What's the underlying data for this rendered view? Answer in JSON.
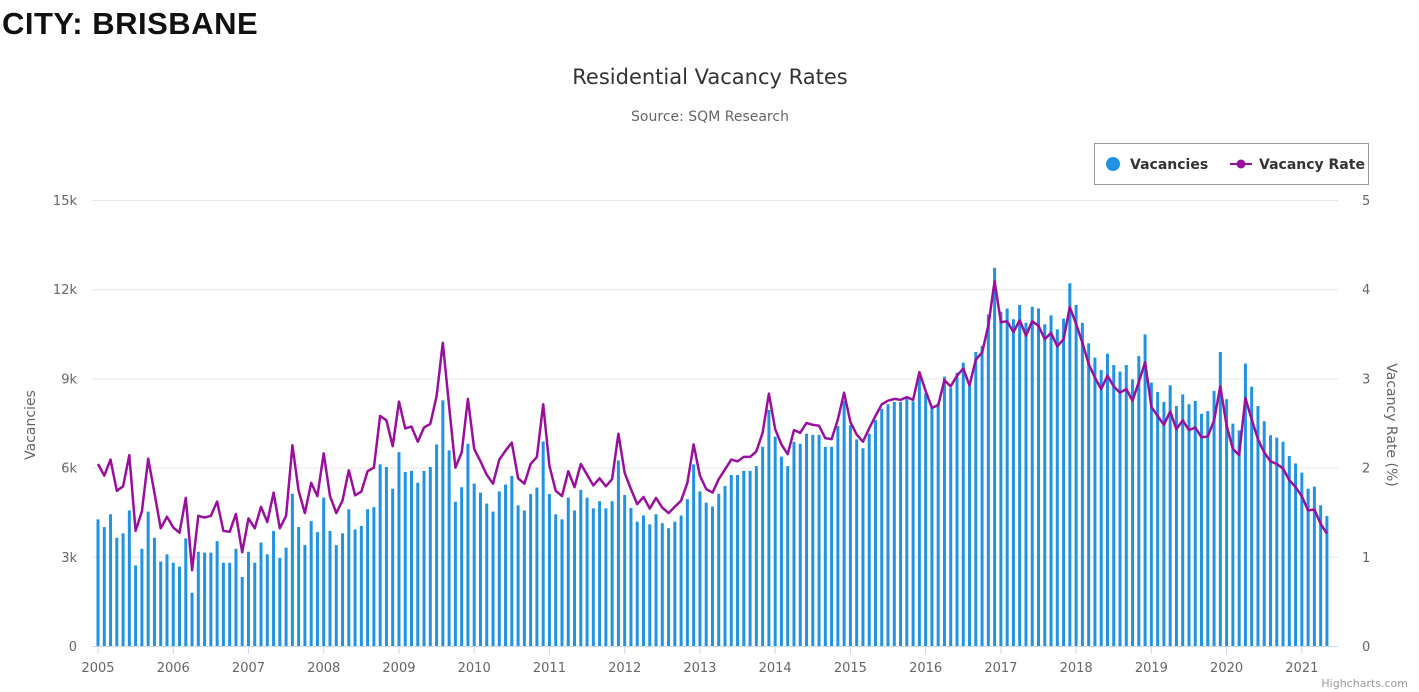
{
  "page": {
    "heading": "CITY: BRISBANE"
  },
  "chart_data": {
    "type": "bar+line",
    "title": "Residential Vacancy Rates",
    "subtitle": "Source: SQM Research",
    "credit": "Highcharts.com",
    "legend": {
      "placement": "top-right",
      "items": [
        "Vacancies",
        "Vacancy Rate"
      ]
    },
    "colors": {
      "Vacancies": "#2293e3",
      "Vacancy Rate": "#990f9e",
      "grid": "#e6e6e6"
    },
    "x_start_year": 2005,
    "x_tick_labels": [
      "2005",
      "2006",
      "2007",
      "2008",
      "2009",
      "2010",
      "2011",
      "2012",
      "2013",
      "2014",
      "2015",
      "2016",
      "2017",
      "2018",
      "2019",
      "2020",
      "2021"
    ],
    "y_left": {
      "title": "Vacancies",
      "min": 0,
      "max": 15000,
      "tick_labels": [
        "0",
        "3k",
        "6k",
        "9k",
        "12k",
        "15k"
      ]
    },
    "y_right": {
      "title": "Vacancy Rate (%)",
      "min": 0,
      "max": 5,
      "tick_labels": [
        "0",
        "1",
        "2",
        "3",
        "4",
        "5"
      ]
    },
    "grid": true,
    "frequency": "monthly",
    "x_range": [
      "2005-01",
      "2021-05"
    ],
    "series": [
      {
        "name": "Vacancies",
        "type": "bar",
        "axis": "left",
        "values": [
          4260,
          4000,
          4430,
          3640,
          3790,
          4560,
          2710,
          3270,
          4520,
          3640,
          2840,
          3080,
          2800,
          2670,
          3620,
          1790,
          3170,
          3140,
          3140,
          3530,
          2800,
          2800,
          3270,
          2320,
          3170,
          2800,
          3480,
          3080,
          3870,
          2960,
          3310,
          5120,
          4000,
          3400,
          4200,
          3830,
          4990,
          3870,
          3390,
          3790,
          4600,
          3920,
          4040,
          4600,
          4670,
          6110,
          6020,
          5290,
          6520,
          5850,
          5890,
          5490,
          5890,
          6020,
          6780,
          8260,
          6580,
          4850,
          5340,
          6800,
          5460,
          5160,
          4790,
          4520,
          5200,
          5430,
          5720,
          4730,
          4560,
          5110,
          5330,
          6880,
          5110,
          4430,
          4260,
          4990,
          4560,
          5250,
          4990,
          4630,
          4870,
          4630,
          4870,
          6240,
          5080,
          4640,
          4180,
          4390,
          4090,
          4430,
          4130,
          3960,
          4180,
          4390,
          4940,
          6110,
          5200,
          4820,
          4690,
          5120,
          5380,
          5750,
          5750,
          5890,
          5890,
          6050,
          6700,
          7940,
          7040,
          6370,
          6050,
          6870,
          6800,
          7140,
          7100,
          7100,
          6700,
          6700,
          7400,
          8240,
          7430,
          6950,
          6650,
          7140,
          7600,
          7980,
          8130,
          8210,
          8210,
          8340,
          8230,
          9130,
          8500,
          8070,
          8160,
          9060,
          8680,
          9190,
          9530,
          8740,
          9890,
          10090,
          11150,
          12720,
          11240,
          11350,
          10990,
          11470,
          10870,
          11410,
          11350,
          10820,
          11120,
          10650,
          11010,
          12200,
          11470,
          10870,
          10180,
          9700,
          9280,
          9830,
          9450,
          9230,
          9450,
          8970,
          9750,
          10480,
          8860,
          8540,
          8210,
          8770,
          8070,
          8460,
          8130,
          8240,
          7810,
          7900,
          8580,
          9890,
          8300,
          7480,
          7250,
          9500,
          8720,
          8070,
          7560,
          7090,
          7010,
          6870,
          6390,
          6140,
          5830,
          5290,
          5360,
          4730,
          4370
        ]
      },
      {
        "name": "Vacancy Rate",
        "type": "line",
        "axis": "right",
        "values": [
          2.04,
          1.91,
          2.09,
          1.74,
          1.79,
          2.14,
          1.29,
          1.51,
          2.1,
          1.72,
          1.32,
          1.45,
          1.33,
          1.27,
          1.66,
          0.85,
          1.46,
          1.44,
          1.46,
          1.62,
          1.29,
          1.28,
          1.48,
          1.05,
          1.43,
          1.32,
          1.56,
          1.39,
          1.72,
          1.32,
          1.46,
          2.25,
          1.74,
          1.49,
          1.83,
          1.68,
          2.16,
          1.68,
          1.49,
          1.63,
          1.97,
          1.69,
          1.73,
          1.96,
          2.0,
          2.58,
          2.53,
          2.24,
          2.74,
          2.44,
          2.46,
          2.29,
          2.45,
          2.49,
          2.8,
          3.4,
          2.69,
          2.0,
          2.17,
          2.77,
          2.21,
          2.07,
          1.92,
          1.82,
          2.09,
          2.19,
          2.28,
          1.88,
          1.82,
          2.04,
          2.12,
          2.71,
          2.02,
          1.74,
          1.68,
          1.96,
          1.78,
          2.04,
          1.92,
          1.8,
          1.88,
          1.79,
          1.87,
          2.38,
          1.94,
          1.76,
          1.59,
          1.67,
          1.54,
          1.66,
          1.55,
          1.49,
          1.56,
          1.63,
          1.83,
          2.26,
          1.91,
          1.76,
          1.72,
          1.87,
          1.98,
          2.09,
          2.07,
          2.12,
          2.12,
          2.18,
          2.39,
          2.83,
          2.43,
          2.26,
          2.15,
          2.42,
          2.39,
          2.5,
          2.48,
          2.47,
          2.33,
          2.32,
          2.54,
          2.84,
          2.51,
          2.37,
          2.29,
          2.44,
          2.58,
          2.71,
          2.75,
          2.77,
          2.76,
          2.79,
          2.76,
          3.07,
          2.86,
          2.67,
          2.7,
          2.98,
          2.91,
          3.03,
          3.11,
          2.92,
          3.21,
          3.29,
          3.59,
          4.09,
          3.63,
          3.64,
          3.52,
          3.65,
          3.48,
          3.64,
          3.59,
          3.44,
          3.51,
          3.36,
          3.44,
          3.8,
          3.61,
          3.4,
          3.16,
          3.01,
          2.88,
          3.03,
          2.91,
          2.84,
          2.88,
          2.75,
          2.96,
          3.18,
          2.68,
          2.58,
          2.48,
          2.63,
          2.43,
          2.53,
          2.42,
          2.45,
          2.34,
          2.35,
          2.53,
          2.91,
          2.47,
          2.21,
          2.14,
          2.78,
          2.54,
          2.32,
          2.17,
          2.07,
          2.04,
          1.99,
          1.86,
          1.78,
          1.68,
          1.52,
          1.53,
          1.37,
          1.26
        ]
      }
    ]
  }
}
